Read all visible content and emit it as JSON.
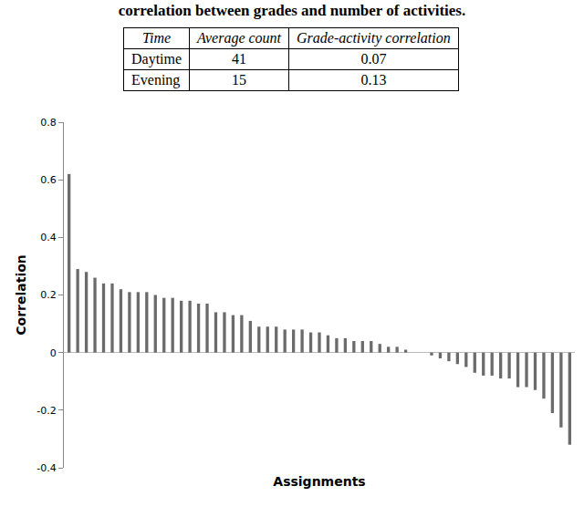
{
  "caption": "correlation between grades and number of activities.",
  "table": {
    "header": [
      "Time",
      "Average count",
      "Grade-activity correlation"
    ],
    "rows": [
      [
        "Daytime",
        "41",
        "0.07"
      ],
      [
        "Evening",
        "15",
        "0.13"
      ]
    ]
  },
  "chart_data": {
    "type": "bar",
    "x_label": "Assignments",
    "y_label": "Correlation",
    "categories": [
      null,
      null,
      null,
      null,
      null,
      null,
      null,
      null,
      null,
      null,
      null,
      null,
      null,
      null,
      null,
      null,
      null,
      null,
      null,
      null,
      null,
      null,
      null,
      null,
      null,
      null,
      null,
      null,
      null,
      null,
      null,
      null,
      null,
      null,
      null,
      null,
      null,
      null,
      null,
      null,
      null,
      null,
      null,
      null,
      null,
      null,
      null,
      null,
      null,
      null,
      null,
      null,
      null,
      null,
      null,
      null,
      null,
      null,
      null
    ],
    "values": [
      0.62,
      0.29,
      0.28,
      0.26,
      0.24,
      0.24,
      0.22,
      0.21,
      0.21,
      0.21,
      0.2,
      0.19,
      0.19,
      0.18,
      0.18,
      0.17,
      0.17,
      0.14,
      0.14,
      0.13,
      0.13,
      0.11,
      0.09,
      0.09,
      0.09,
      0.08,
      0.08,
      0.08,
      0.07,
      0.07,
      0.06,
      0.05,
      0.05,
      0.04,
      0.04,
      0.04,
      0.03,
      0.02,
      0.02,
      0.01,
      0.0,
      0.0,
      -0.01,
      -0.02,
      -0.03,
      -0.04,
      -0.05,
      -0.07,
      -0.08,
      -0.08,
      -0.09,
      -0.09,
      -0.12,
      -0.12,
      -0.13,
      -0.16,
      -0.21,
      -0.26,
      -0.32
    ],
    "color": "#6b6b6b",
    "ylim": [
      -0.4,
      0.8
    ],
    "yticks": [
      -0.4,
      -0.2,
      0,
      0.2,
      0.4,
      0.6,
      0.8
    ],
    "grid": false,
    "tick_labels": "y"
  }
}
